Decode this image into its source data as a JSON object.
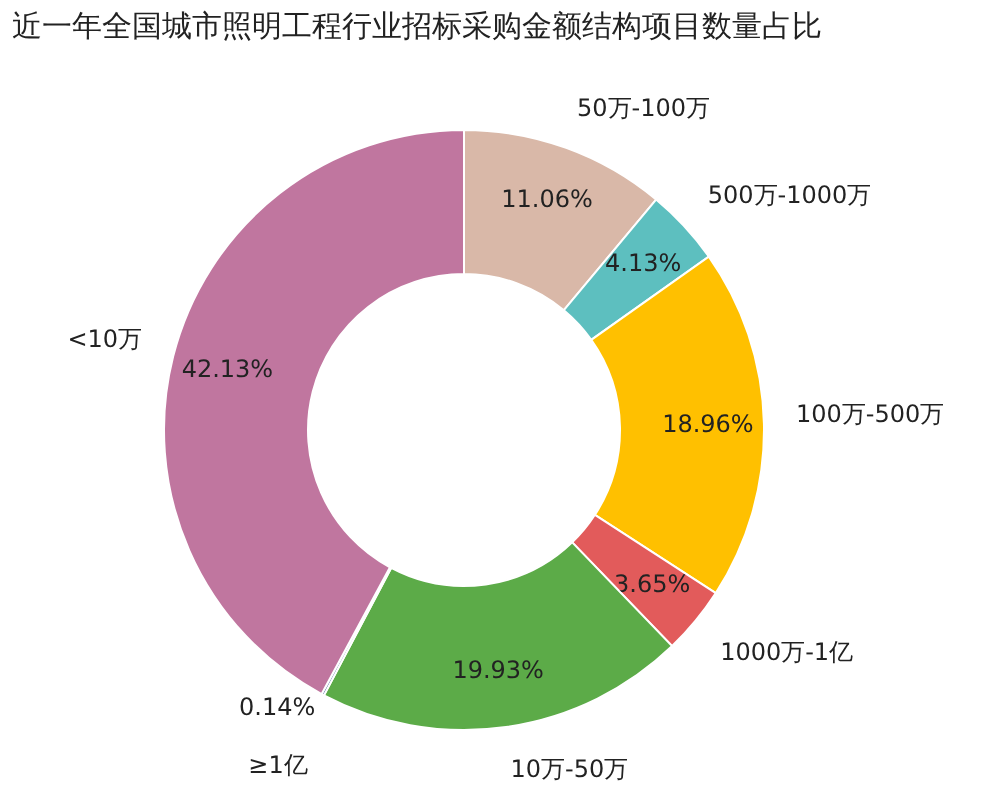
{
  "chart_data": {
    "type": "donut",
    "title": "近一年全国城市照明工程行业招标采购金额结构项目数量占比",
    "categories": [
      "50万-100万",
      "500万-1000万",
      "100万-500万",
      "1000万-1亿",
      "10万-50万",
      "≥1亿",
      "<10万"
    ],
    "values": [
      11.06,
      4.13,
      18.96,
      3.65,
      19.93,
      0.14,
      42.13
    ],
    "colors": [
      "#d9b8a8",
      "#5dbfbf",
      "#ffc000",
      "#e25b5b",
      "#5cab48",
      "#3f5f9a",
      "#c0769f"
    ],
    "value_labels": [
      "11.06%",
      "4.13%",
      "18.96%",
      "3.65%",
      "19.93%",
      "0.14%",
      "42.13%"
    ]
  }
}
